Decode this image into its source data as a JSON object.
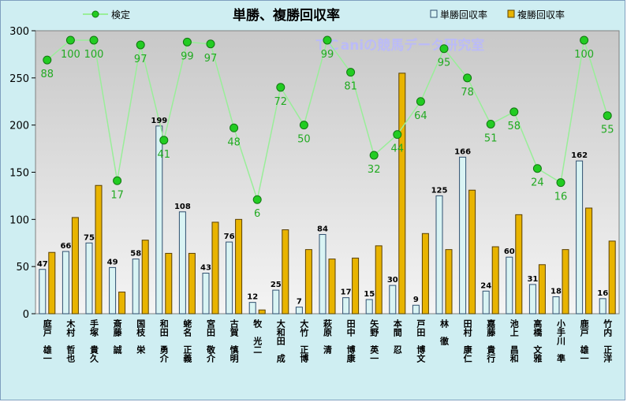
{
  "chart_data": {
    "type": "bar",
    "title": "単勝、複勝回収率",
    "watermark": "ＴＣaniの競馬データ研究室",
    "categories": [
      "庭戸　雄一",
      "木村　哲也",
      "手塚　貴久",
      "斎藤　誠",
      "国枝　栄",
      "和田　勇介",
      "蛯名　正義",
      "宮田　敬介",
      "古賀　慎明",
      "牧　光二",
      "大和田　成",
      "大竹　正博",
      "萩原　清",
      "田中　博康",
      "矢野　英一",
      "本間　忍",
      "戸田　博文",
      "林　徹",
      "田村　康仁",
      "嘉藤　貴行",
      "池上　昌和",
      "高橋　文雅",
      "小手川　準",
      "鹿戸　雄一",
      "竹内　正洋"
    ],
    "series": [
      {
        "name": "単勝回収率",
        "kind": "bar",
        "color": "#d9f4f4",
        "border": "#2f4f6f",
        "values": [
          47,
          66,
          75,
          49,
          58,
          199,
          108,
          43,
          76,
          12,
          25,
          7,
          84,
          17,
          15,
          30,
          9,
          125,
          166,
          24,
          60,
          31,
          18,
          162,
          16
        ]
      },
      {
        "name": "複勝回収率",
        "kind": "bar",
        "color": "#e8b400",
        "border": "#5a4000",
        "values": [
          65,
          102,
          136,
          23,
          78,
          64,
          64,
          97,
          100,
          4,
          89,
          68,
          58,
          59,
          72,
          255,
          85,
          68,
          131,
          71,
          105,
          52,
          68,
          112,
          77
        ]
      },
      {
        "name": "検定",
        "kind": "line",
        "color": "#22cc22",
        "line_color": "#99ee99",
        "label_color": "#22aa22",
        "values": [
          88,
          100,
          100,
          17,
          97,
          41,
          99,
          97,
          48,
          6,
          72,
          50,
          99,
          81,
          32,
          44,
          64,
          95,
          78,
          51,
          58,
          24,
          16,
          100,
          55
        ]
      }
    ],
    "line_y_positions": [
      269,
      290,
      290,
      141,
      285,
      184,
      288,
      286,
      197,
      121,
      240,
      200,
      290,
      256,
      168,
      190,
      225,
      281,
      250,
      201,
      214,
      154,
      139,
      290,
      210
    ],
    "ylim": [
      0,
      300
    ],
    "yticks": [
      0,
      50,
      100,
      150,
      200,
      250,
      300
    ],
    "legend": [
      {
        "name": "検定",
        "swatch": "line-marker"
      },
      {
        "name": "単勝回収率",
        "swatch": "box-light"
      },
      {
        "name": "複勝回収率",
        "swatch": "box-gold"
      }
    ],
    "legend_position": "top",
    "grid": false,
    "colors": {
      "frame_bg": "#cfeef2",
      "plot_bg_top": "#c8c8c8",
      "plot_bg_bottom": "#f4f4f4",
      "title": "#000000",
      "watermark": "#b8b8ff"
    }
  }
}
